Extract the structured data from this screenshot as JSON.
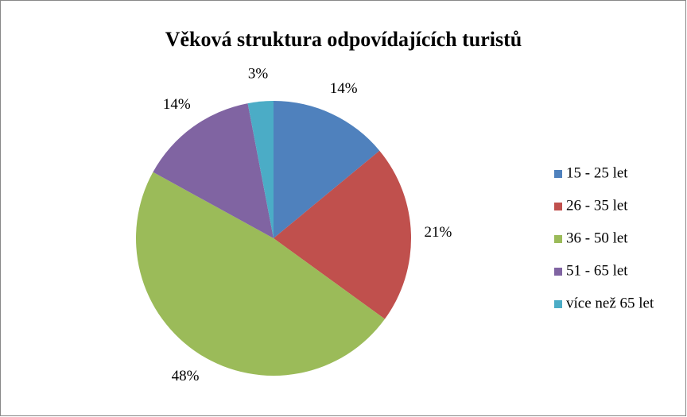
{
  "chart_data": {
    "type": "pie",
    "title": "Věková struktura odpovídajících turistů",
    "categories": [
      "15 - 25 let",
      "26 - 35 let",
      "36 - 50 let",
      "51 - 65 let",
      "více než 65 let"
    ],
    "values": [
      14,
      21,
      48,
      14,
      3
    ],
    "value_labels": [
      "14%",
      "21%",
      "48%",
      "14%",
      "3%"
    ],
    "colors": [
      "#4f81bd",
      "#c0504d",
      "#9bbb59",
      "#8064a2",
      "#4bacc6"
    ],
    "legend": "right"
  }
}
